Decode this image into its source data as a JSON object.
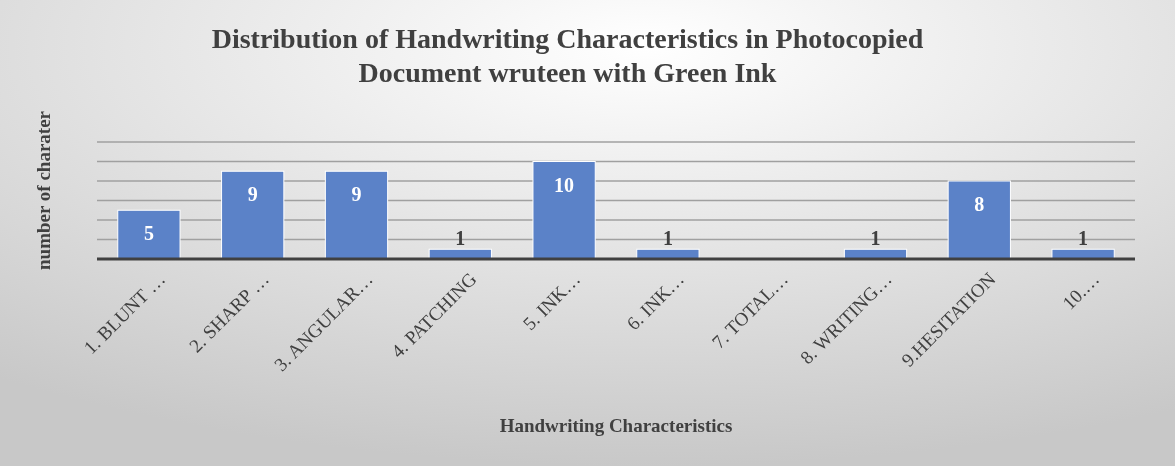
{
  "chart_data": {
    "type": "bar",
    "title": "Distribution of Handwriting Characteristics in Photocopied\nDocument wruteen with Green Ink",
    "xlabel": "Handwriting Characteristics",
    "ylabel": "number of charater",
    "categories": [
      "1. BLUNT …",
      "2. SHARP …",
      "3. ANGULAR…",
      "4. PATCHING",
      "5. INK…",
      "6. INK…",
      "7. TOTAL…",
      "8. WRITING…",
      "9.HESITATION",
      "10.…"
    ],
    "values": [
      5,
      9,
      9,
      1,
      10,
      1,
      null,
      1,
      8,
      1
    ],
    "color": "#5b82c8",
    "data_labels": true,
    "ylim": [
      0,
      12
    ],
    "yticks": [
      {
        "value": 0,
        "label": null
      },
      {
        "value": 2,
        "label": null
      },
      {
        "value": 4,
        "label": null
      },
      {
        "value": 6,
        "label": null
      },
      {
        "value": 8,
        "label": null
      },
      {
        "value": 10,
        "label": null
      },
      {
        "value": 12,
        "label": null
      }
    ],
    "grid": "y",
    "tick_labels": "x"
  }
}
